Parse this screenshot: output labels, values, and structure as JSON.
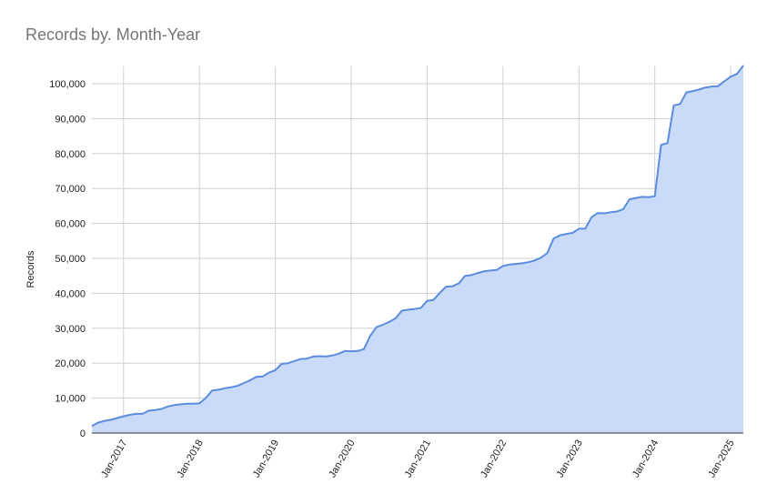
{
  "chart_data": {
    "type": "area",
    "title": "Records by. Month-Year",
    "y_label": "Records",
    "line_color": "#5b8ddc",
    "fill_color": "#c9dbf8",
    "grid": true,
    "x": [
      "2016-08",
      "2016-09",
      "2016-10",
      "2016-11",
      "2016-12",
      "2017-01",
      "2017-02",
      "2017-03",
      "2017-04",
      "2017-05",
      "2017-06",
      "2017-07",
      "2017-08",
      "2017-09",
      "2017-10",
      "2017-11",
      "2017-12",
      "2018-01",
      "2018-02",
      "2018-03",
      "2018-04",
      "2018-05",
      "2018-06",
      "2018-07",
      "2018-08",
      "2018-09",
      "2018-10",
      "2018-11",
      "2018-12",
      "2019-01",
      "2019-02",
      "2019-03",
      "2019-04",
      "2019-05",
      "2019-06",
      "2019-07",
      "2019-08",
      "2019-09",
      "2019-10",
      "2019-11",
      "2019-12",
      "2020-01",
      "2020-02",
      "2020-03",
      "2020-04",
      "2020-05",
      "2020-06",
      "2020-07",
      "2020-08",
      "2020-09",
      "2020-10",
      "2020-11",
      "2020-12",
      "2021-01",
      "2021-02",
      "2021-03",
      "2021-04",
      "2021-05",
      "2021-06",
      "2021-07",
      "2021-08",
      "2021-09",
      "2021-10",
      "2021-11",
      "2021-12",
      "2022-01",
      "2022-02",
      "2022-03",
      "2022-04",
      "2022-05",
      "2022-06",
      "2022-07",
      "2022-08",
      "2022-09",
      "2022-10",
      "2022-11",
      "2022-12",
      "2023-01",
      "2023-02",
      "2023-03",
      "2023-04",
      "2023-05",
      "2023-06",
      "2023-07",
      "2023-08",
      "2023-09",
      "2023-10",
      "2023-11",
      "2023-12",
      "2024-01",
      "2024-02",
      "2024-03",
      "2024-04",
      "2024-05",
      "2024-06",
      "2024-07",
      "2024-08",
      "2024-09",
      "2024-10",
      "2024-11",
      "2024-12",
      "2025-01",
      "2025-02",
      "2025-03"
    ],
    "values": [
      2000,
      3000,
      3500,
      3800,
      4300,
      4800,
      5200,
      5500,
      5500,
      6400,
      6600,
      6900,
      7600,
      8000,
      8200,
      8400,
      8400,
      8500,
      10000,
      12200,
      12400,
      12800,
      13100,
      13500,
      14300,
      15100,
      16100,
      16200,
      17300,
      18000,
      19800,
      20000,
      20600,
      21200,
      21300,
      21900,
      22000,
      21900,
      22200,
      22700,
      23500,
      23400,
      23500,
      24000,
      27800,
      30300,
      31000,
      31800,
      32800,
      35000,
      35300,
      35500,
      35800,
      37800,
      38100,
      40100,
      41900,
      42000,
      42800,
      45000,
      45200,
      45800,
      46300,
      46500,
      46700,
      47800,
      48200,
      48400,
      48600,
      48900,
      49400,
      50200,
      51500,
      55700,
      56600,
      57000,
      57300,
      58500,
      58500,
      61800,
      63000,
      62900,
      63200,
      63400,
      64100,
      66900,
      67300,
      67600,
      67500,
      67800,
      82500,
      83000,
      93800,
      94200,
      97500,
      97900,
      98300,
      98900,
      99200,
      99300,
      100700,
      102000,
      102800,
      105200
    ],
    "xlim": [
      "2016-08",
      "2025-03"
    ],
    "xticks": [
      {
        "value": "2017-01",
        "label": "Jan-2017"
      },
      {
        "value": "2018-01",
        "label": "Jan-2018"
      },
      {
        "value": "2019-01",
        "label": "Jan-2019"
      },
      {
        "value": "2020-01",
        "label": "Jan-2020"
      },
      {
        "value": "2021-01",
        "label": "Jan-2021"
      },
      {
        "value": "2022-01",
        "label": "Jan-2022"
      },
      {
        "value": "2023-01",
        "label": "Jan-2023"
      },
      {
        "value": "2024-01",
        "label": "Jan-2024"
      },
      {
        "value": "2025-01",
        "label": "Jan-2025"
      }
    ],
    "ylim": [
      0,
      105000
    ],
    "yticks": [
      0,
      {
        "value": 10000,
        "label": "10,000"
      },
      {
        "value": 20000,
        "label": "20,000"
      },
      {
        "value": 30000,
        "label": "30,000"
      },
      {
        "value": 40000,
        "label": "40,000"
      },
      {
        "value": 50000,
        "label": "50,000"
      },
      {
        "value": 60000,
        "label": "60,000"
      },
      {
        "value": 70000,
        "label": "70,000"
      },
      {
        "value": 80000,
        "label": "80,000"
      },
      {
        "value": 90000,
        "label": "90,000"
      },
      {
        "value": 100000,
        "label": "100,000"
      }
    ]
  }
}
